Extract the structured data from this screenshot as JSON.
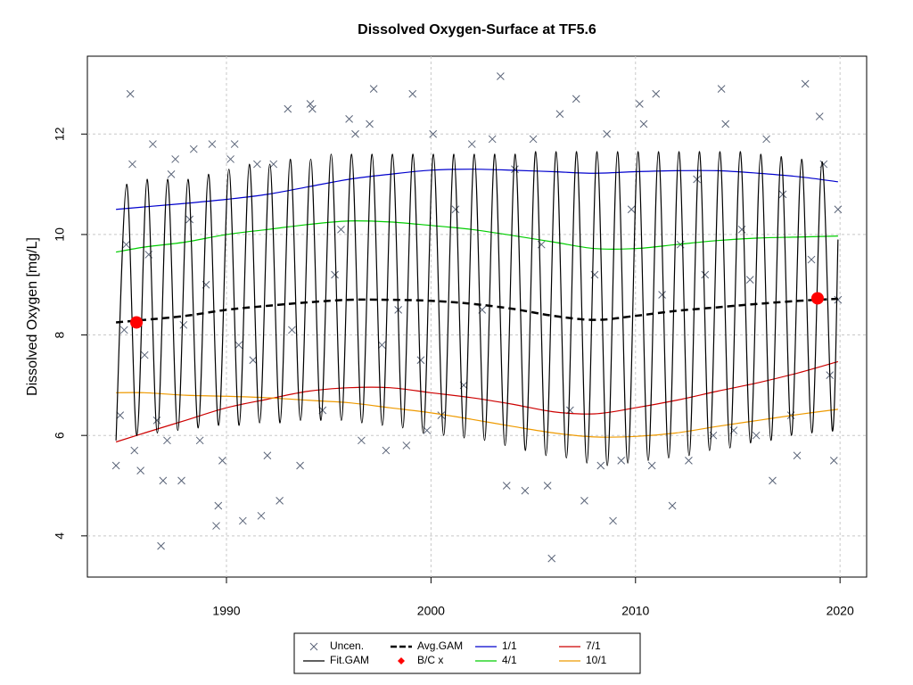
{
  "chart_data": {
    "type": "line",
    "title": "Dissolved Oxygen-Surface at TF5.6",
    "y_label": "Dissolved Oxygen [mg/L]",
    "xlim": [
      1983.2,
      2021.3
    ],
    "ylim": [
      3.18,
      13.55
    ],
    "xticks": [
      1990,
      2000,
      2010,
      2020
    ],
    "yticks": [
      4,
      6,
      8,
      10,
      12
    ],
    "grid": true,
    "legend": "bottom",
    "series": [
      {
        "name": "Uncen.",
        "color": "#5a6478",
        "mode": "markers",
        "marker": "x",
        "x": [
          1984.6,
          1984.8,
          1985.0,
          1985.1,
          1985.3,
          1985.4,
          1985.5,
          1985.8,
          1986.0,
          1986.2,
          1986.4,
          1986.6,
          1986.8,
          1986.9,
          1987.1,
          1987.3,
          1987.5,
          1987.8,
          1987.9,
          1988.2,
          1988.4,
          1988.7,
          1989.0,
          1989.3,
          1989.5,
          1989.6,
          1989.8,
          1990.2,
          1990.4,
          1990.6,
          1990.8,
          1991.3,
          1991.5,
          1991.7,
          1992.0,
          1992.3,
          1992.6,
          1993.0,
          1993.2,
          1993.6,
          1994.1,
          1994.2,
          1994.7,
          1995.3,
          1995.6,
          1996.0,
          1996.3,
          1996.6,
          1997.0,
          1997.2,
          1997.6,
          1997.8,
          1998.4,
          1998.8,
          1999.1,
          1999.5,
          1999.8,
          2000.1,
          2000.5,
          2001.2,
          2001.6,
          2002.0,
          2002.5,
          2003.0,
          2003.4,
          2003.7,
          2004.1,
          2004.6,
          2005.0,
          2005.4,
          2005.7,
          2005.9,
          2006.3,
          2006.8,
          2007.1,
          2007.5,
          2008.0,
          2008.3,
          2008.6,
          2008.9,
          2009.3,
          2009.8,
          2010.2,
          2010.4,
          2010.8,
          2011.0,
          2011.3,
          2011.8,
          2012.2,
          2012.6,
          2013.0,
          2013.4,
          2013.8,
          2014.2,
          2014.4,
          2014.8,
          2015.2,
          2015.6,
          2015.9,
          2016.4,
          2016.7,
          2017.2,
          2017.6,
          2017.9,
          2018.3,
          2018.6,
          2019.0,
          2019.2,
          2019.5,
          2019.7,
          2019.9,
          2019.9
        ],
        "values": [
          5.4,
          6.4,
          8.1,
          9.8,
          12.8,
          11.4,
          5.7,
          5.3,
          7.6,
          9.6,
          11.8,
          6.3,
          3.8,
          5.1,
          5.9,
          11.2,
          11.5,
          5.1,
          8.2,
          10.3,
          11.7,
          5.9,
          9.0,
          11.8,
          4.2,
          4.6,
          5.5,
          11.5,
          11.8,
          7.8,
          4.3,
          7.5,
          11.4,
          4.4,
          5.6,
          11.4,
          4.7,
          12.5,
          8.1,
          5.4,
          12.6,
          12.5,
          6.5,
          9.2,
          10.1,
          12.3,
          12.0,
          5.9,
          12.2,
          12.9,
          7.8,
          5.7,
          8.5,
          5.8,
          12.8,
          7.5,
          6.1,
          12.0,
          6.4,
          10.5,
          7.0,
          11.8,
          8.5,
          11.9,
          13.15,
          5.0,
          11.3,
          4.9,
          11.9,
          9.8,
          5.0,
          3.55,
          12.4,
          6.5,
          12.7,
          4.7,
          9.2,
          5.4,
          12.0,
          4.3,
          5.5,
          10.5,
          12.6,
          12.2,
          5.4,
          12.8,
          8.8,
          4.6,
          9.8,
          5.5,
          11.1,
          9.2,
          6.0,
          12.9,
          12.2,
          6.1,
          10.1,
          9.1,
          6.0,
          11.9,
          5.1,
          10.8,
          6.4,
          5.6,
          13.0,
          9.5,
          12.35,
          11.4,
          7.2,
          5.5,
          10.5,
          8.7
        ]
      },
      {
        "name": "Fit.GAM",
        "color": "#000000",
        "mode": "lines",
        "x": [
          1984.6,
          1985.12,
          1985.62,
          1986.12,
          1986.62,
          1987.12,
          1987.62,
          1988.12,
          1988.62,
          1989.12,
          1989.62,
          1990.12,
          1990.62,
          1991.12,
          1991.62,
          1992.12,
          1992.62,
          1993.12,
          1993.62,
          1994.12,
          1994.62,
          1995.12,
          1995.62,
          1996.12,
          1996.62,
          1997.12,
          1997.62,
          1998.12,
          1998.62,
          1999.12,
          1999.62,
          2000.12,
          2000.62,
          2001.12,
          2001.62,
          2002.12,
          2002.62,
          2003.12,
          2003.62,
          2004.12,
          2004.62,
          2005.12,
          2005.62,
          2006.12,
          2006.62,
          2007.12,
          2007.62,
          2008.12,
          2008.62,
          2009.12,
          2009.62,
          2010.12,
          2010.62,
          2011.12,
          2011.62,
          2012.12,
          2012.62,
          2013.12,
          2013.62,
          2014.12,
          2014.62,
          2015.12,
          2015.62,
          2016.12,
          2016.62,
          2017.12,
          2017.62,
          2018.12,
          2018.62,
          2019.12,
          2019.62,
          2019.9
        ],
        "values": [
          5.9,
          11.0,
          6.0,
          11.1,
          6.05,
          11.1,
          6.1,
          11.1,
          6.15,
          11.2,
          6.2,
          11.3,
          6.2,
          11.4,
          6.25,
          11.4,
          6.25,
          11.5,
          6.3,
          11.5,
          6.3,
          11.6,
          6.3,
          11.6,
          6.25,
          11.6,
          6.2,
          11.6,
          6.15,
          11.6,
          6.05,
          11.6,
          6.0,
          11.6,
          5.95,
          11.6,
          5.9,
          11.6,
          5.8,
          11.6,
          5.7,
          11.65,
          5.6,
          11.65,
          5.55,
          11.65,
          5.45,
          11.65,
          5.4,
          11.65,
          5.45,
          11.65,
          5.5,
          11.65,
          5.55,
          11.65,
          5.6,
          11.65,
          5.7,
          11.65,
          5.75,
          11.65,
          5.85,
          11.6,
          5.9,
          11.55,
          6.0,
          11.5,
          6.05,
          11.45,
          6.1,
          9.9
        ]
      },
      {
        "name": "Avg.GAM",
        "color": "#000000",
        "mode": "lines",
        "dash": true,
        "x": [
          1984.6,
          1986,
          1988,
          1990,
          1992,
          1994,
          1996,
          1998,
          2000,
          2002,
          2004,
          2006,
          2008,
          2010,
          2012,
          2014,
          2016,
          2018,
          2019.9
        ],
        "values": [
          8.25,
          8.3,
          8.38,
          8.5,
          8.58,
          8.65,
          8.7,
          8.7,
          8.68,
          8.62,
          8.52,
          8.38,
          8.3,
          8.38,
          8.48,
          8.55,
          8.62,
          8.68,
          8.72
        ]
      },
      {
        "name": "B/C x",
        "color": "#ff0000",
        "mode": "markers",
        "marker": "dot",
        "x": [
          1985.6,
          2018.9
        ],
        "values": [
          8.25,
          8.73
        ]
      },
      {
        "name": "1/1",
        "color": "#0000cd",
        "mode": "lines",
        "x": [
          1984.6,
          1986,
          1988,
          1990,
          1992,
          1994,
          1996,
          1998,
          2000,
          2002,
          2004,
          2006,
          2008,
          2010,
          2012,
          2014,
          2016,
          2018,
          2019.9
        ],
        "values": [
          10.5,
          10.55,
          10.62,
          10.7,
          10.8,
          10.95,
          11.1,
          11.2,
          11.28,
          11.3,
          11.28,
          11.25,
          11.22,
          11.25,
          11.27,
          11.27,
          11.22,
          11.15,
          11.05
        ]
      },
      {
        "name": "4/1",
        "color": "#00cd00",
        "mode": "lines",
        "x": [
          1984.6,
          1986,
          1988,
          1990,
          1992,
          1994,
          1996,
          1998,
          2000,
          2002,
          2004,
          2006,
          2008,
          2010,
          2012,
          2014,
          2016,
          2018,
          2019.9
        ],
        "values": [
          9.65,
          9.75,
          9.85,
          10.0,
          10.1,
          10.2,
          10.27,
          10.25,
          10.18,
          10.1,
          9.98,
          9.85,
          9.72,
          9.72,
          9.8,
          9.88,
          9.93,
          9.95,
          9.97
        ]
      },
      {
        "name": "7/1",
        "color": "#cd0000",
        "mode": "lines",
        "x": [
          1984.6,
          1986,
          1988,
          1990,
          1992,
          1994,
          1996,
          1998,
          2000,
          2002,
          2004,
          2006,
          2008,
          2010,
          2012,
          2014,
          2016,
          2018,
          2019.9
        ],
        "values": [
          5.87,
          6.05,
          6.3,
          6.55,
          6.72,
          6.88,
          6.95,
          6.95,
          6.85,
          6.75,
          6.62,
          6.47,
          6.43,
          6.55,
          6.7,
          6.88,
          7.05,
          7.25,
          7.47
        ]
      },
      {
        "name": "10/1",
        "color": "#ee9a00",
        "mode": "lines",
        "x": [
          1984.6,
          1986,
          1988,
          1990,
          1992,
          1994,
          1996,
          1998,
          2000,
          2002,
          2004,
          2006,
          2008,
          2010,
          2012,
          2014,
          2016,
          2018,
          2019.9
        ],
        "values": [
          6.85,
          6.85,
          6.8,
          6.78,
          6.75,
          6.7,
          6.65,
          6.55,
          6.45,
          6.32,
          6.18,
          6.05,
          5.97,
          5.98,
          6.05,
          6.18,
          6.3,
          6.42,
          6.52
        ]
      }
    ]
  }
}
